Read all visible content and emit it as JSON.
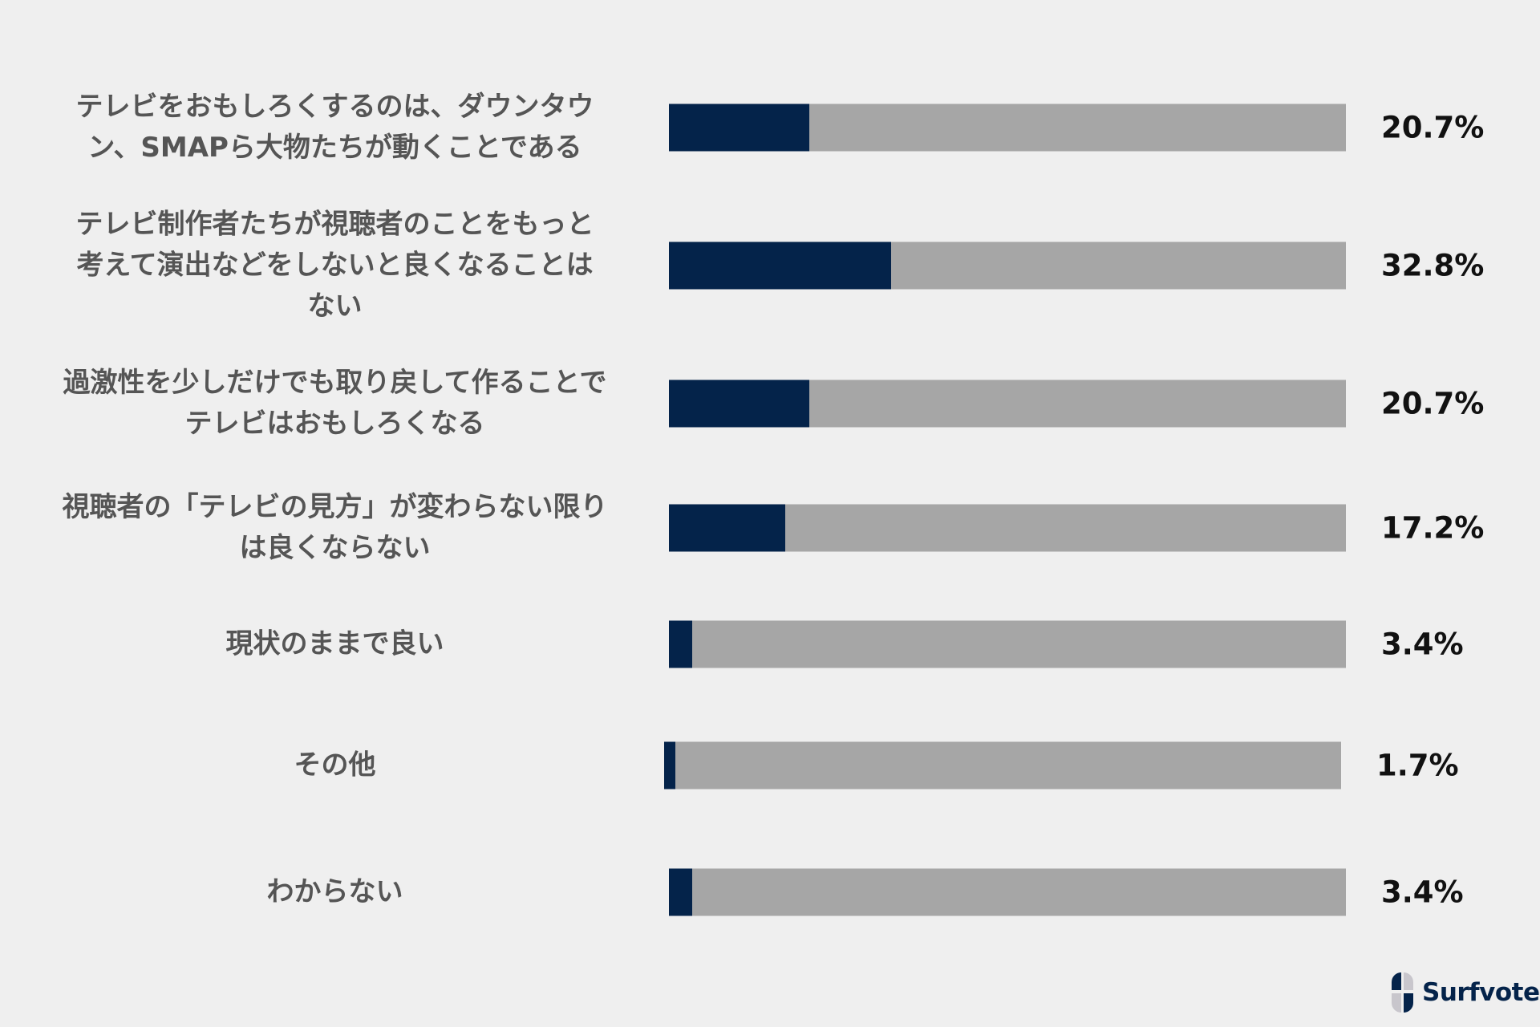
{
  "chart_data": {
    "type": "bar",
    "orientation": "horizontal",
    "categories": [
      "テレビをおもしろくするのは、ダウンタウ\nン、SMAPら大物たちが動くことである",
      "テレビ制作者たちが視聴者のことをもっと\n考えて演出などをしないと良くなることは\nない",
      "過激性を少しだけでも取り戻して作ることで\nテレビはおもしろくなる",
      "視聴者の「テレビの見方」が変わらない限り\nは良くならない",
      "現状のままで良い",
      "その他",
      "わからない"
    ],
    "values": [
      20.7,
      32.8,
      20.7,
      17.2,
      3.4,
      1.7,
      3.4
    ],
    "value_labels": [
      "20.7%",
      "32.8%",
      "20.7%",
      "17.2%",
      "3.4%",
      "1.7%",
      "3.4%"
    ],
    "xlim": [
      0,
      100
    ],
    "grid": false,
    "colors": {
      "fill": "#04234a",
      "track": "#a6a6a6",
      "background": "#efefef"
    }
  },
  "logo": {
    "text": "Surfvote"
  }
}
